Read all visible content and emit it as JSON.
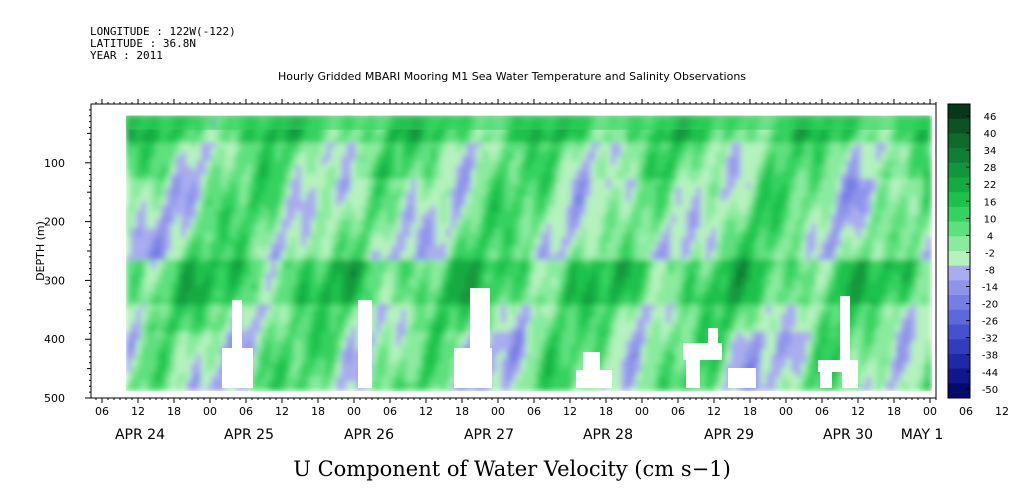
{
  "header": {
    "longitude": "LONGITUDE : 122W(-122)",
    "latitude": "LATITUDE : 36.8N",
    "year": "YEAR : 2011",
    "title": "Hourly Gridded MBARI Mooring M1 Sea Water Temperature and Salinity Observations"
  },
  "chart_data": {
    "type": "heatmap",
    "title": "Hourly Gridded MBARI Mooring M1 Sea Water Temperature and Salinity Observations",
    "variable": "U Component of Water Velocity (cm s-1)",
    "xlabel": "",
    "ylabel": "DEPTH (m)",
    "y_reversed": true,
    "ylim": [
      0,
      500
    ],
    "yticks": [
      100,
      200,
      300,
      400,
      500
    ],
    "hour_ticks": [
      "06",
      "12",
      "18",
      "00",
      "06",
      "12",
      "18",
      "00",
      "06",
      "12",
      "18",
      "00",
      "06",
      "12",
      "18",
      "00",
      "06",
      "12",
      "18",
      "00",
      "06",
      "12",
      "18",
      "00",
      "06",
      "12",
      "18",
      "00",
      "06",
      "12",
      "18",
      "00"
    ],
    "date_labels": [
      "APR 24",
      "APR 25",
      "APR 26",
      "APR 27",
      "APR 28",
      "APR 29",
      "APR 30",
      "MAY  1"
    ],
    "colorbar": {
      "labels": [
        46,
        40,
        34,
        28,
        22,
        16,
        10,
        4,
        -2,
        -8,
        -14,
        -20,
        -26,
        -32,
        -38,
        -44,
        -50
      ],
      "colors": [
        "#08381a",
        "#0b5224",
        "#0e6a2d",
        "#107f35",
        "#12963c",
        "#15ab43",
        "#1ac24c",
        "#35d25f",
        "#5fe07e",
        "#8aeb9e",
        "#b5f2bd",
        "#a9acee",
        "#8e94ea",
        "#767de4",
        "#5e67db",
        "#4751cf",
        "#323cbf",
        "#1f29a8",
        "#10168c",
        "#050a6d"
      ]
    },
    "depth_range_data": [
      20,
      485
    ],
    "grid": false,
    "colorbar_position": "right"
  },
  "xlabel_text": "U Component of Water Velocity (cm s−1)",
  "ylabel_text": "DEPTH (m)"
}
